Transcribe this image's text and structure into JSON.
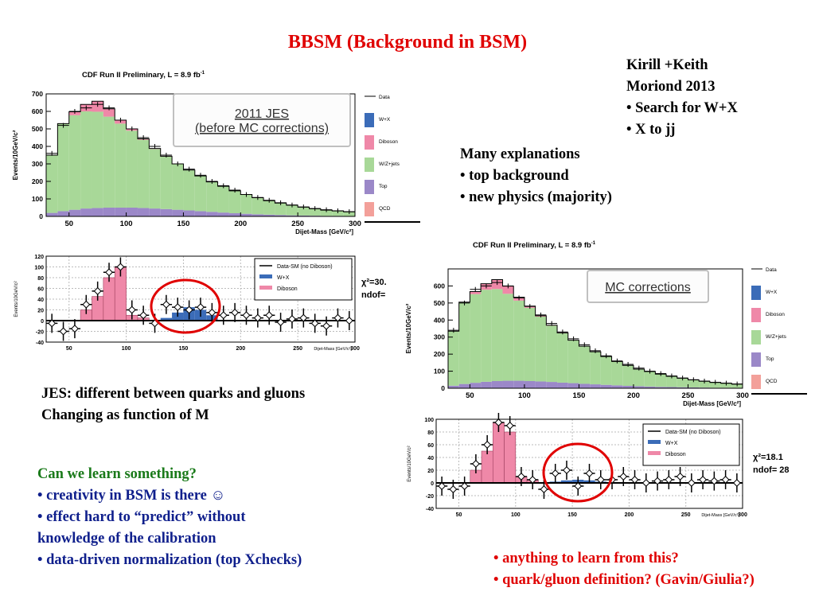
{
  "slide": {
    "title": "BBSM (Background in BSM)",
    "authors_block": [
      "Kirill +Keith",
      "Moriond 2013",
      "• Search for W+X",
      "• X to jj"
    ],
    "explanations_block": [
      "Many explanations",
      "• top background",
      "• new physics (majority)"
    ],
    "jes_block": [
      "JES: different between quarks and gluons",
      "Changing as function of M"
    ],
    "learn_block": [
      "Can we learn something?",
      "• creativity in BSM is there ☺",
      "• effect hard to “predict” without",
      "knowledge of the calibration",
      "• data-driven normalization (top Xchecks)"
    ],
    "anything_block": [
      "• anything to learn from this?",
      "• quark/gluon definition? (Gavin/Giulia?)"
    ],
    "colors": {
      "title": "#e00000",
      "authors": "#000000",
      "learn_heading": "#1a7a1a",
      "learn_body": "#0f1f8c",
      "anything": "#e00000"
    }
  },
  "chart_data": [
    {
      "type": "stacked-histogram",
      "panel": "upper-left",
      "title": "CDF Run II Preliminary, L = 8.9 fb",
      "title_sup": "-1",
      "xlabel": "Dijet-Mass [GeV/c²]",
      "ylabel": "Events/10GeV/c²",
      "xlim": [
        30,
        300
      ],
      "ylim": [
        0,
        700
      ],
      "xticks": [
        50,
        100,
        150,
        200,
        250,
        300
      ],
      "yticks": [
        0,
        100,
        200,
        300,
        400,
        500,
        600,
        700
      ],
      "box_label": [
        "2011 JES",
        "(before MC corrections)"
      ],
      "legend": [
        "Data",
        "W+X",
        "Diboson",
        "W/Z+jets",
        "Top",
        "QCD"
      ],
      "x": [
        35,
        45,
        55,
        65,
        75,
        85,
        95,
        105,
        115,
        125,
        135,
        145,
        155,
        165,
        175,
        185,
        195,
        205,
        215,
        225,
        235,
        245,
        255,
        265,
        275,
        285,
        295
      ],
      "series": [
        {
          "name": "Top",
          "values": [
            20,
            30,
            38,
            45,
            48,
            50,
            50,
            50,
            48,
            45,
            42,
            38,
            34,
            30,
            26,
            22,
            18,
            15,
            12,
            10,
            8,
            6,
            5,
            4,
            3,
            3,
            2
          ]
        },
        {
          "name": "W/Z+jets",
          "values": [
            330,
            500,
            540,
            555,
            550,
            520,
            480,
            440,
            390,
            340,
            300,
            260,
            230,
            200,
            170,
            150,
            128,
            110,
            95,
            80,
            68,
            58,
            48,
            40,
            33,
            28,
            24
          ]
        },
        {
          "name": "Diboson",
          "values": [
            0,
            0,
            20,
            40,
            60,
            45,
            20,
            10,
            5,
            3,
            2,
            2,
            1,
            1,
            1,
            0,
            0,
            0,
            0,
            0,
            0,
            0,
            0,
            0,
            0,
            0,
            0
          ]
        }
      ],
      "data": [
        360,
        520,
        600,
        620,
        640,
        620,
        550,
        500,
        450,
        400,
        350,
        300,
        270,
        235,
        200,
        175,
        150,
        125,
        108,
        92,
        78,
        65,
        54,
        45,
        38,
        32,
        27
      ]
    },
    {
      "type": "residual-histogram",
      "panel": "lower-left",
      "xlabel": "Dijet-Mass [GeV/c²]",
      "ylabel": "Events/10GeV/c²",
      "xlim": [
        30,
        300
      ],
      "ylim": [
        -40,
        120
      ],
      "xticks": [
        50,
        100,
        150,
        200,
        250,
        300
      ],
      "yticks": [
        -40,
        -20,
        0,
        20,
        40,
        60,
        80,
        100,
        120
      ],
      "legend": [
        "Data-SM (no Diboson)",
        "W+X",
        "Diboson"
      ],
      "chi2": "χ²=30.",
      "ndof": "ndof=",
      "x": [
        35,
        45,
        55,
        65,
        75,
        85,
        95,
        105,
        115,
        125,
        135,
        145,
        155,
        165,
        175,
        185,
        195,
        205,
        215,
        225,
        235,
        245,
        255,
        265,
        275,
        285,
        295
      ],
      "diboson": [
        0,
        0,
        0,
        20,
        45,
        80,
        100,
        10,
        5,
        0,
        0,
        0,
        0,
        0,
        0,
        0,
        0,
        0,
        0,
        0,
        0,
        0,
        0,
        0,
        0,
        0,
        0
      ],
      "wx": [
        0,
        0,
        0,
        0,
        0,
        0,
        0,
        0,
        0,
        0,
        5,
        15,
        25,
        20,
        10,
        0,
        0,
        0,
        0,
        0,
        0,
        0,
        0,
        0,
        0,
        0,
        0
      ],
      "points": [
        -5,
        -20,
        -15,
        30,
        55,
        90,
        100,
        20,
        10,
        -5,
        30,
        25,
        20,
        25,
        15,
        10,
        15,
        10,
        5,
        10,
        -3,
        3,
        5,
        -5,
        -10,
        5,
        0
      ]
    },
    {
      "type": "stacked-histogram",
      "panel": "right-top",
      "title": "CDF Run II Preliminary, L = 8.9 fb",
      "title_sup": "-1",
      "xlabel": "Dijet-Mass [GeV/c²]",
      "ylabel": "Events/10GeV/c²",
      "xlim": [
        30,
        300
      ],
      "ylim": [
        0,
        700
      ],
      "xticks": [
        50,
        100,
        150,
        200,
        250,
        300
      ],
      "yticks": [
        0,
        100,
        200,
        300,
        400,
        500,
        600
      ],
      "box_label": [
        "MC corrections"
      ],
      "legend": [
        "Data",
        "W+X",
        "Diboson",
        "W/Z+jets",
        "Top",
        "QCD"
      ],
      "x": [
        35,
        45,
        55,
        65,
        75,
        85,
        95,
        105,
        115,
        125,
        135,
        145,
        155,
        165,
        175,
        185,
        195,
        205,
        215,
        225,
        235,
        245,
        255,
        265,
        275,
        285,
        295
      ],
      "series": [
        {
          "name": "Top",
          "values": [
            15,
            25,
            32,
            38,
            42,
            44,
            44,
            42,
            40,
            37,
            33,
            30,
            26,
            23,
            20,
            17,
            14,
            12,
            10,
            8,
            7,
            6,
            5,
            4,
            3,
            3,
            2
          ]
        },
        {
          "name": "W/Z+jets",
          "values": [
            320,
            480,
            520,
            540,
            540,
            510,
            470,
            430,
            380,
            330,
            290,
            250,
            220,
            190,
            165,
            140,
            120,
            100,
            88,
            75,
            63,
            53,
            44,
            37,
            31,
            26,
            22
          ]
        },
        {
          "name": "Diboson",
          "values": [
            0,
            0,
            15,
            35,
            55,
            45,
            20,
            10,
            5,
            3,
            2,
            2,
            1,
            1,
            1,
            0,
            0,
            0,
            0,
            0,
            0,
            0,
            0,
            0,
            0,
            0,
            0
          ]
        }
      ],
      "data": [
        340,
        500,
        580,
        600,
        620,
        600,
        530,
        480,
        430,
        380,
        330,
        290,
        255,
        220,
        190,
        160,
        140,
        118,
        100,
        86,
        72,
        60,
        50,
        42,
        35,
        30,
        25
      ]
    },
    {
      "type": "residual-histogram",
      "panel": "right-bottom",
      "xlabel": "Dijet-Mass [GeV/c²]",
      "ylabel": "Events/10GeV/c²",
      "xlim": [
        30,
        300
      ],
      "ylim": [
        -40,
        100
      ],
      "xticks": [
        50,
        100,
        150,
        200,
        250,
        300
      ],
      "yticks": [
        -40,
        -20,
        0,
        20,
        40,
        60,
        80,
        100
      ],
      "legend": [
        "Data-SM (no Diboson)",
        "W+X",
        "Diboson"
      ],
      "chi2": "χ²=18.1",
      "ndof": "ndof= 28",
      "x": [
        35,
        45,
        55,
        65,
        75,
        85,
        95,
        105,
        115,
        125,
        135,
        145,
        155,
        165,
        175,
        185,
        195,
        205,
        215,
        225,
        235,
        245,
        255,
        265,
        275,
        285,
        295
      ],
      "diboson": [
        0,
        0,
        0,
        20,
        50,
        95,
        80,
        10,
        5,
        0,
        0,
        0,
        0,
        0,
        0,
        0,
        0,
        0,
        0,
        0,
        0,
        0,
        0,
        0,
        0,
        0,
        0
      ],
      "wx": [
        0,
        0,
        0,
        0,
        0,
        0,
        0,
        0,
        0,
        0,
        2,
        4,
        5,
        4,
        2,
        0,
        0,
        0,
        0,
        0,
        0,
        0,
        0,
        0,
        0,
        0,
        0
      ],
      "points": [
        -5,
        -10,
        -5,
        30,
        60,
        95,
        90,
        10,
        5,
        -10,
        15,
        20,
        -5,
        15,
        5,
        5,
        10,
        5,
        0,
        3,
        5,
        10,
        0,
        5,
        3,
        5,
        0
      ]
    }
  ]
}
